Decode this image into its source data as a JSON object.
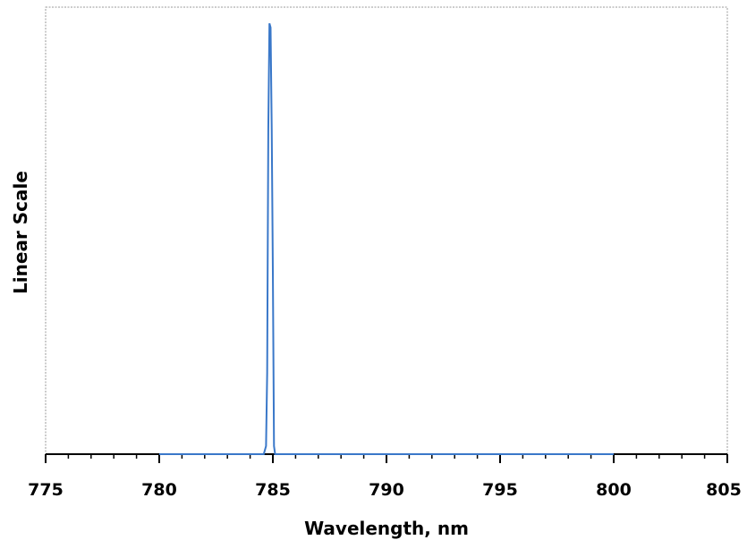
{
  "chart_data": {
    "type": "line",
    "title": "",
    "xlabel": "Wavelength, nm",
    "ylabel": "Linear Scale",
    "xlim": [
      775,
      805
    ],
    "ylim": [
      0,
      1.1
    ],
    "x_ticks": [
      775,
      780,
      785,
      790,
      795,
      800,
      805
    ],
    "x_tick_labels": [
      "775",
      "780",
      "785",
      "790",
      "795",
      "800",
      "805"
    ],
    "x_minor_step": 1,
    "y_ticks_shown": false,
    "grid": false,
    "legend": "none",
    "series": [
      {
        "color": "#3a78c9",
        "x": [
          780,
          784.6,
          784.7,
          784.75,
          784.8,
          784.85,
          784.9,
          784.95,
          785.0,
          785.05,
          785.1,
          786,
          800
        ],
        "y": [
          0,
          0,
          0.02,
          0.2,
          0.8,
          1.06,
          1.05,
          0.8,
          0.45,
          0.02,
          0,
          0,
          0
        ]
      }
    ],
    "colors": {
      "frame": "#9a9a9a",
      "axis": "#000000",
      "line": "#3a78c9"
    }
  }
}
